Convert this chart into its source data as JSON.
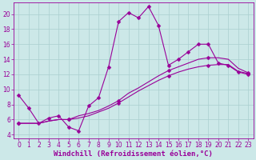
{
  "xlabel": "Windchill (Refroidissement éolien,°C)",
  "background_color": "#cce8e8",
  "grid_color": "#aacfcf",
  "line_color": "#990099",
  "xlim": [
    -0.5,
    23.5
  ],
  "ylim": [
    3.5,
    21.5
  ],
  "xticks": [
    0,
    1,
    2,
    3,
    4,
    5,
    6,
    7,
    8,
    9,
    10,
    11,
    12,
    13,
    14,
    15,
    16,
    17,
    18,
    19,
    20,
    21,
    22,
    23
  ],
  "yticks": [
    4,
    6,
    8,
    10,
    12,
    14,
    16,
    18,
    20
  ],
  "line1_x": [
    0,
    1,
    2,
    3,
    4,
    5,
    6,
    7,
    8,
    9,
    10,
    11,
    12,
    13,
    14,
    15,
    16,
    17,
    18,
    19,
    20,
    21,
    22,
    23
  ],
  "line1_y": [
    9.2,
    7.5,
    5.5,
    6.2,
    6.5,
    5.0,
    4.5,
    7.8,
    8.9,
    13.0,
    19.0,
    20.2,
    19.5,
    21.0,
    18.5,
    13.2,
    14.0,
    15.0,
    16.0,
    16.0,
    13.5,
    13.2,
    12.3,
    12.0
  ],
  "line2_x": [
    0,
    1,
    2,
    3,
    4,
    5,
    6,
    7,
    8,
    9,
    10,
    11,
    12,
    13,
    14,
    15,
    16,
    17,
    18,
    19,
    20,
    21,
    22,
    23
  ],
  "line2_y": [
    5.5,
    5.5,
    5.5,
    5.8,
    6.0,
    6.0,
    6.2,
    6.5,
    7.0,
    7.5,
    8.2,
    9.0,
    9.8,
    10.5,
    11.2,
    11.8,
    12.3,
    12.7,
    13.0,
    13.2,
    13.3,
    13.3,
    12.4,
    12.1
  ],
  "line3_x": [
    0,
    1,
    2,
    3,
    4,
    5,
    6,
    7,
    8,
    9,
    10,
    11,
    12,
    13,
    14,
    15,
    16,
    17,
    18,
    19,
    20,
    21,
    22,
    23
  ],
  "line3_y": [
    5.5,
    5.5,
    5.5,
    5.8,
    6.0,
    6.0,
    6.5,
    6.8,
    7.2,
    7.8,
    8.5,
    9.5,
    10.2,
    11.0,
    11.8,
    12.5,
    13.0,
    13.5,
    14.0,
    14.2,
    14.2,
    14.0,
    12.8,
    12.2
  ],
  "line1_marker_x": [
    0,
    1,
    2,
    3,
    4,
    5,
    6,
    7,
    8,
    9,
    10,
    11,
    12,
    13,
    14,
    15,
    16,
    17,
    18,
    19,
    20,
    21,
    22,
    23
  ],
  "line1_marker_y": [
    9.2,
    7.5,
    5.5,
    6.2,
    6.5,
    5.0,
    4.5,
    7.8,
    8.9,
    13.0,
    19.0,
    20.2,
    19.5,
    21.0,
    18.5,
    13.2,
    14.0,
    15.0,
    16.0,
    16.0,
    13.5,
    13.2,
    12.3,
    12.0
  ],
  "line2_marker_x": [
    0,
    5,
    10,
    15,
    19,
    23
  ],
  "line2_marker_y": [
    5.5,
    6.0,
    8.2,
    11.8,
    13.2,
    12.1
  ],
  "line3_marker_x": [
    0,
    5,
    10,
    15,
    19,
    23
  ],
  "line3_marker_y": [
    5.5,
    6.0,
    8.5,
    12.5,
    14.2,
    12.2
  ],
  "marker": "D",
  "marker_size": 2.5,
  "linewidth": 0.8,
  "xlabel_fontsize": 6.5,
  "tick_fontsize": 5.5
}
